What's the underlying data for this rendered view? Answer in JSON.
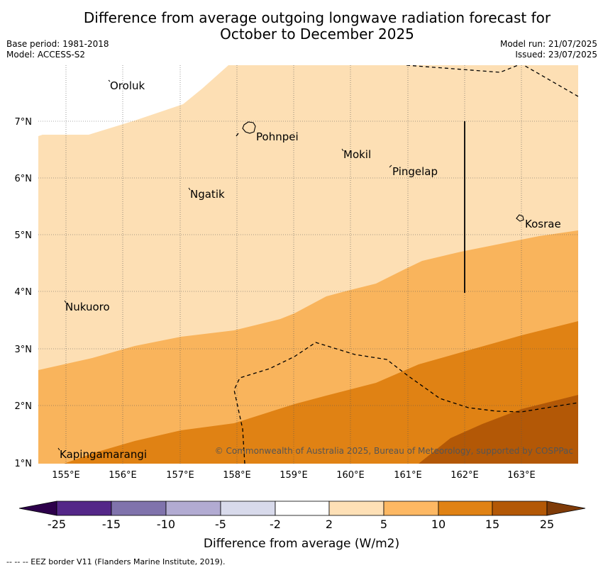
{
  "header": {
    "title_line1": "Difference from average outgoing longwave radiation forecast for",
    "title_line2": "October to December 2025",
    "base_period": "Base period: 1981-2018",
    "model": "Model: ACCESS-S2",
    "model_run": "Model run: 21/07/2025",
    "issued": "Issued: 23/07/2025"
  },
  "map": {
    "lon_labels": [
      "155°E",
      "156°E",
      "157°E",
      "158°E",
      "159°E",
      "160°E",
      "161°E",
      "162°E",
      "163°E"
    ],
    "lat_labels": [
      "7°N",
      "6°N",
      "5°N",
      "4°N",
      "3°N",
      "2°N",
      "1°N"
    ],
    "places": [
      "Oroluk",
      "Pohnpei",
      "Mokil",
      "Pingelap",
      "Ngatik",
      "Kosrae",
      "Nukuoro",
      "Kapingamarangi"
    ],
    "copyright": "© Commonwealth of Australia 2025, Bureau of Meteorology, supported by COSPPac",
    "colors": {
      "band_2_5": "#fddfb4",
      "band_5_10": "#f9b45c",
      "band_10_15": "#e08214",
      "band_15_25": "#b35806"
    }
  },
  "colorbar": {
    "ticks": [
      "-25",
      "-15",
      "-10",
      "-5",
      "-2",
      "2",
      "5",
      "10",
      "15",
      "25"
    ],
    "colors": [
      "#2d004b",
      "#542788",
      "#8073ac",
      "#b2abd2",
      "#d8daeb",
      "#ffffff",
      "#fee0b6",
      "#fdb863",
      "#e08214",
      "#b35806",
      "#7f3b08"
    ],
    "label": "Difference from average (W/m2)"
  },
  "footnote": "--  --  -- EEZ border V11 (Flanders Marine Institute, 2019)."
}
